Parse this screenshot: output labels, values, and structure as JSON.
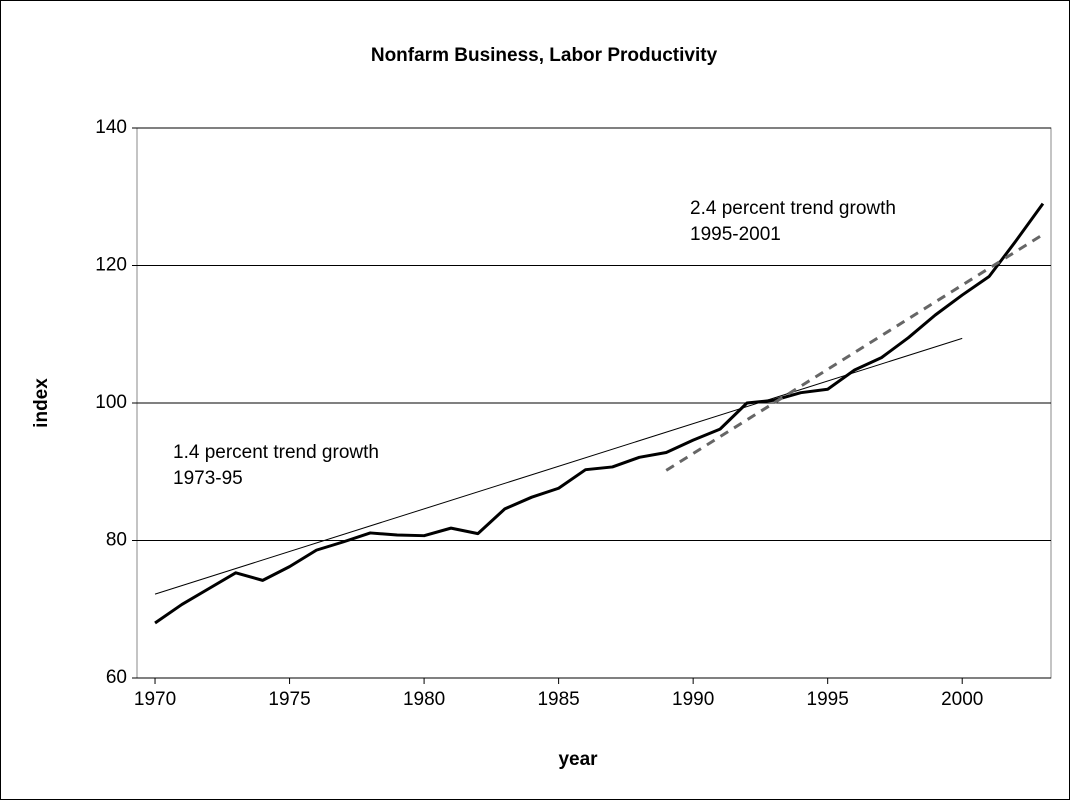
{
  "chart_data": {
    "type": "line",
    "title": "Nonfarm Business, Labor Productivity",
    "xlabel": "year",
    "ylabel": "index",
    "series": [
      {
        "color": "#000000",
        "style": "solid",
        "width": 3,
        "x": [
          1970,
          1971,
          1972,
          1973,
          1974,
          1975,
          1976,
          1977,
          1978,
          1979,
          1980,
          1981,
          1982,
          1983,
          1984,
          1985,
          1986,
          1987,
          1988,
          1989,
          1990,
          1991,
          1992,
          1993,
          1994,
          1995,
          1996,
          1997,
          1998,
          1999,
          2000,
          2001,
          2002,
          2003
        ],
        "values": [
          68,
          70.7,
          73,
          75.3,
          74.2,
          76.2,
          78.6,
          79.8,
          81.1,
          80.8,
          80.7,
          81.8,
          81,
          84.6,
          86.3,
          87.6,
          90.3,
          90.7,
          92.1,
          92.8,
          94.6,
          96.2,
          100,
          100.4,
          101.5,
          102,
          104.8,
          106.6,
          109.5,
          112.8,
          115.7,
          118.4,
          123.6,
          129
        ]
      },
      {
        "color": "#000000",
        "style": "solid",
        "width": 1,
        "x": [
          1970,
          2000
        ],
        "values": [
          72.2,
          109.4
        ]
      },
      {
        "color": "#666666",
        "style": "dashed",
        "width": 3,
        "x": [
          1989,
          2003
        ],
        "values": [
          90.2,
          124.5
        ]
      }
    ],
    "annotations": [
      {
        "lines": [
          "1.4 percent trend growth",
          "1973-95"
        ]
      },
      {
        "lines": [
          "2.4 percent trend growth",
          "1995-2001"
        ]
      }
    ],
    "xlim": [
      1969.33,
      2003.3
    ],
    "xticks": [
      1970,
      1975,
      1980,
      1985,
      1990,
      1995,
      2000
    ],
    "ylim": [
      60,
      140
    ],
    "yticks": [
      60,
      80,
      100,
      120,
      140
    ],
    "grid": true
  }
}
